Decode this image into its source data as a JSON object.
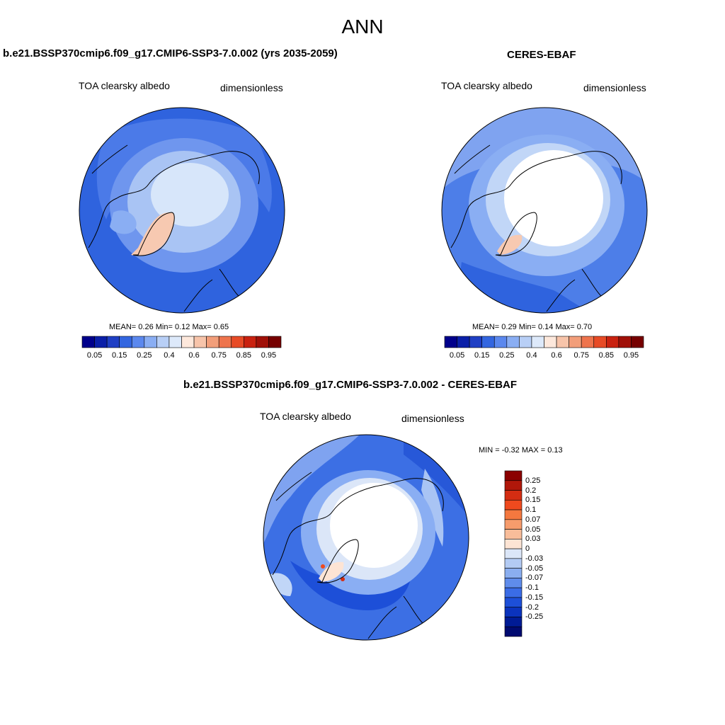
{
  "figure": {
    "title": "ANN",
    "field_label": "TOA clearsky albedo",
    "units_label": "dimensionless"
  },
  "panels": [
    {
      "id": "model",
      "title": "b.e21.BSSP370cmip6.f09_g17.CMIP6-SSP3-7.0.002 (yrs 2035-2059)",
      "stats": {
        "mean_label": "MEAN=",
        "mean": "0.26",
        "min_label": "Min=",
        "min": "0.12",
        "max_label": "Max=",
        "max": "0.65"
      }
    },
    {
      "id": "obs",
      "title": "CERES-EBAF",
      "stats": {
        "mean_label": "MEAN=",
        "mean": "0.29",
        "min_label": "Min=",
        "min": "0.14",
        "max_label": "Max=",
        "max": "0.70"
      }
    },
    {
      "id": "diff",
      "title": "b.e21.BSSP370cmip6.f09_g17.CMIP6-SSP3-7.0.002 - CERES-EBAF",
      "stats_text": "MIN =  -0.32 MAX =   0.13"
    }
  ],
  "colorbar_main": {
    "colors": [
      "#00008b",
      "#0a1fa8",
      "#1f3fc4",
      "#3366e0",
      "#5b88ee",
      "#8aaef3",
      "#b8cff6",
      "#dde9fa",
      "#fde8dc",
      "#f7c4aa",
      "#f29e7a",
      "#ee744d",
      "#e74b26",
      "#c92210",
      "#a01008",
      "#760000"
    ],
    "tick_labels": [
      "0.05",
      "0.15",
      "0.25",
      "0.4",
      "0.6",
      "0.75",
      "0.85",
      "0.95"
    ]
  },
  "colorbar_diff": {
    "colors": [
      "#8b0000",
      "#b0170a",
      "#d42d12",
      "#ef4a1e",
      "#f4783f",
      "#f79c6c",
      "#f9bd9a",
      "#fde4d4",
      "#dbe6f8",
      "#b3cbf4",
      "#8aaef0",
      "#5f8ceb",
      "#3a6ce6",
      "#1d4fd8",
      "#0b33bd",
      "#001b95",
      "#000a70"
    ],
    "tick_labels": [
      "0.25",
      "0.2",
      "0.15",
      "0.1",
      "0.07",
      "0.05",
      "0.03",
      "0",
      "-0.03",
      "-0.05",
      "-0.07",
      "-0.1",
      "-0.15",
      "-0.2",
      "-0.25"
    ]
  }
}
